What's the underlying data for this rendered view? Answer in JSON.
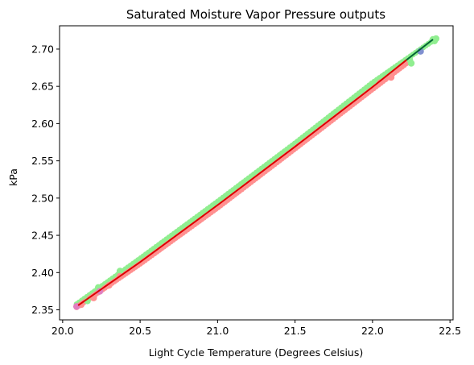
{
  "chart_data": {
    "type": "scatter",
    "title": "Saturated Moisture Vapor Pressure outputs",
    "xlabel": "Light Cycle Temperature (Degrees Celsius)",
    "ylabel": "kPa",
    "xlim": [
      19.98,
      22.52
    ],
    "ylim": [
      2.3365,
      2.7313
    ],
    "xticks": [
      20.0,
      20.5,
      21.0,
      21.5,
      22.0,
      22.5
    ],
    "xtick_labels": [
      "20.0",
      "20.5",
      "21.0",
      "21.5",
      "22.0",
      "22.5"
    ],
    "yticks": [
      2.35,
      2.4,
      2.45,
      2.5,
      2.55,
      2.6,
      2.65,
      2.7
    ],
    "ytick_labels": [
      "2.35",
      "2.40",
      "2.45",
      "2.50",
      "2.55",
      "2.60",
      "2.65",
      "2.70"
    ],
    "grid": false,
    "legend": "none",
    "x_range": [
      20.09,
      22.41
    ],
    "colors": {
      "band_green": "#90ee90",
      "band_red": "#ff9090",
      "blue_point": "#8090d0",
      "pink_point": "#e080c0",
      "fit_red": "#dd0000",
      "fit_green": "#006633"
    },
    "series": [
      {
        "type": "band",
        "color": "#90ee90",
        "x": [
          20.09,
          20.5,
          21.0,
          21.5,
          22.0,
          22.41
        ],
        "y": [
          2.3575,
          2.4187,
          2.4952,
          2.5735,
          2.6547,
          2.7143
        ]
      },
      {
        "type": "band",
        "color": "#ff9090",
        "x": [
          20.09,
          20.5,
          21.0,
          21.5,
          22.0,
          22.22
        ],
        "y": [
          2.3535,
          2.4118,
          2.4871,
          2.5664,
          2.6462,
          2.681
        ]
      },
      {
        "type": "points",
        "color": "#90ee90",
        "x": [
          20.16,
          20.23,
          20.37,
          22.1,
          22.24,
          22.25,
          22.39,
          22.4,
          22.41
        ],
        "y": [
          2.362,
          2.38,
          2.402,
          2.668,
          2.686,
          2.681,
          2.713,
          2.711,
          2.714
        ]
      },
      {
        "type": "points",
        "color": "#ff9090",
        "x": [
          20.12,
          20.2,
          20.3,
          20.37,
          22.05,
          22.12
        ],
        "y": [
          2.357,
          2.366,
          2.383,
          2.395,
          2.655,
          2.662
        ]
      },
      {
        "type": "points",
        "color": "#8090d0",
        "x": [
          22.31
        ],
        "y": [
          2.697
        ]
      },
      {
        "type": "points",
        "color": "#e080c0",
        "x": [
          20.09,
          20.24
        ],
        "y": [
          2.3545,
          2.3748
        ]
      },
      {
        "type": "line",
        "color": "#dd0000",
        "x": [
          20.1,
          20.5,
          21.0,
          21.5,
          22.0,
          22.22
        ],
        "y": [
          2.356,
          2.414,
          2.4906,
          2.5689,
          2.6491,
          2.6856
        ]
      },
      {
        "type": "line",
        "color": "#006633",
        "x": [
          22.22,
          22.39
        ],
        "y": [
          2.6856,
          2.713
        ]
      }
    ]
  }
}
